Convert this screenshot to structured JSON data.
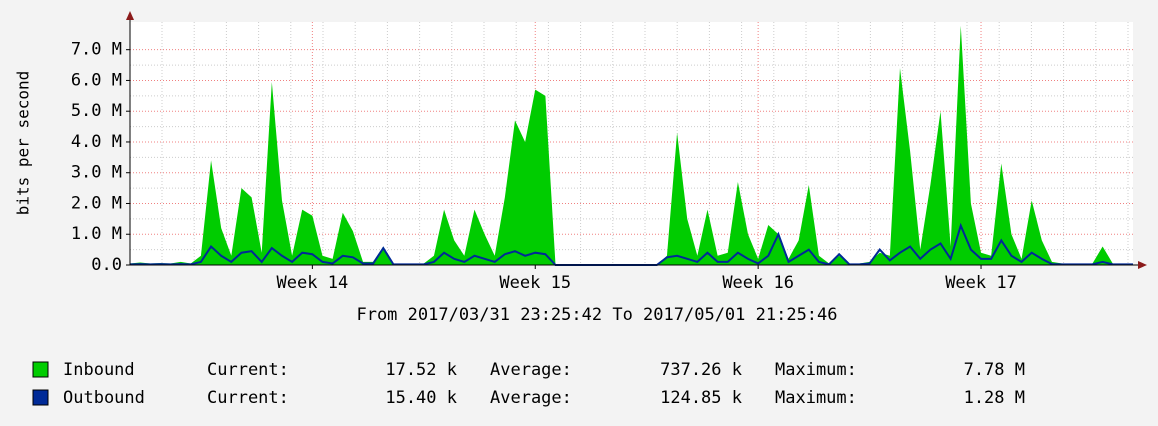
{
  "chart_data": {
    "type": "area",
    "subtitle": "From 2017/03/31 23:25:42 To 2017/05/01 21:25:46",
    "y_label": "bits per second",
    "categories": [
      null,
      null,
      null,
      null,
      null,
      null,
      null,
      null,
      null,
      null,
      null,
      null,
      null,
      null,
      null,
      null,
      null,
      null,
      "Week 14",
      null,
      null,
      null,
      null,
      null,
      null,
      null,
      null,
      null,
      null,
      null,
      null,
      null,
      null,
      null,
      null,
      null,
      null,
      null,
      null,
      null,
      "Week 15",
      null,
      null,
      null,
      null,
      null,
      null,
      null,
      null,
      null,
      null,
      null,
      null,
      null,
      null,
      null,
      null,
      null,
      null,
      null,
      null,
      null,
      "Week 16",
      null,
      null,
      null,
      null,
      null,
      null,
      null,
      null,
      null,
      null,
      null,
      null,
      null,
      null,
      null,
      null,
      null,
      null,
      null,
      null,
      null,
      "Week 17",
      null,
      null,
      null,
      null,
      null,
      null,
      null,
      null,
      null,
      null,
      null,
      null,
      null,
      null,
      null
    ],
    "series": [
      {
        "name": "Inbound",
        "color": "#00cc00",
        "values": [
          0.05,
          0.08,
          0.05,
          0.06,
          0.05,
          0.1,
          0.05,
          0.3,
          3.4,
          1.2,
          0.3,
          2.5,
          2.2,
          0.4,
          5.95,
          2.1,
          0.3,
          1.8,
          1.6,
          0.3,
          0.2,
          1.7,
          1.1,
          0.1,
          0.1,
          0.6,
          0.05,
          0.05,
          0.05,
          0.05,
          0.3,
          1.8,
          0.8,
          0.3,
          1.8,
          1.0,
          0.3,
          2.2,
          4.7,
          4.0,
          5.7,
          5.5,
          0,
          0,
          0,
          0,
          0,
          0,
          0,
          0,
          0,
          0,
          0,
          0.3,
          4.3,
          1.5,
          0.3,
          1.8,
          0.3,
          0.4,
          2.7,
          1.0,
          0.2,
          1.3,
          1.0,
          0.2,
          0.8,
          2.6,
          0.3,
          0.05,
          0.3,
          0.05,
          0.05,
          0.1,
          0.4,
          0.3,
          6.4,
          3.7,
          0.5,
          2.6,
          5.0,
          0.6,
          7.78,
          2.0,
          0.4,
          0.3,
          3.3,
          1.0,
          0.2,
          2.1,
          0.8,
          0.1,
          0.05,
          0.05,
          0.05,
          0.05,
          0.6,
          0.05,
          0.05,
          0.05
        ]
      },
      {
        "name": "Outbound",
        "color": "#002a97",
        "values": [
          0.02,
          0.03,
          0.02,
          0.03,
          0.02,
          0.03,
          0.02,
          0.1,
          0.6,
          0.3,
          0.1,
          0.4,
          0.45,
          0.1,
          0.55,
          0.3,
          0.1,
          0.4,
          0.35,
          0.1,
          0.05,
          0.3,
          0.25,
          0.05,
          0.05,
          0.55,
          0.02,
          0.02,
          0.02,
          0.02,
          0.1,
          0.4,
          0.2,
          0.1,
          0.3,
          0.2,
          0.1,
          0.35,
          0.45,
          0.3,
          0.4,
          0.35,
          0,
          0,
          0,
          0,
          0,
          0,
          0,
          0,
          0,
          0,
          0,
          0.25,
          0.3,
          0.2,
          0.1,
          0.4,
          0.1,
          0.1,
          0.4,
          0.2,
          0.05,
          0.3,
          1.0,
          0.1,
          0.3,
          0.5,
          0.1,
          0.02,
          0.35,
          0.02,
          0.02,
          0.05,
          0.5,
          0.15,
          0.4,
          0.6,
          0.2,
          0.5,
          0.7,
          0.2,
          1.28,
          0.5,
          0.2,
          0.2,
          0.8,
          0.3,
          0.1,
          0.4,
          0.2,
          0.03,
          0.02,
          0.02,
          0.02,
          0.02,
          0.1,
          0.02,
          0.02,
          0.02
        ]
      }
    ],
    "ylim": [
      0,
      7.9
    ],
    "yticks": [
      {
        "value": 0,
        "label": "0.0"
      },
      {
        "value": 1,
        "label": "1.0 M"
      },
      {
        "value": 2,
        "label": "2.0 M"
      },
      {
        "value": 3,
        "label": "3.0 M"
      },
      {
        "value": 4,
        "label": "4.0 M"
      },
      {
        "value": 5,
        "label": "5.0 M"
      },
      {
        "value": 6,
        "label": "6.0 M"
      },
      {
        "value": 7,
        "label": "7.0 M"
      }
    ],
    "grid": true,
    "legend_stats": [
      [
        "Current:",
        "17.52 k",
        "Average:",
        "737.26 k",
        "Maximum:",
        "7.78 M"
      ],
      [
        "Current:",
        "15.40 k",
        "Average:",
        "124.85 k",
        "Maximum:",
        "1.28 M"
      ]
    ]
  }
}
